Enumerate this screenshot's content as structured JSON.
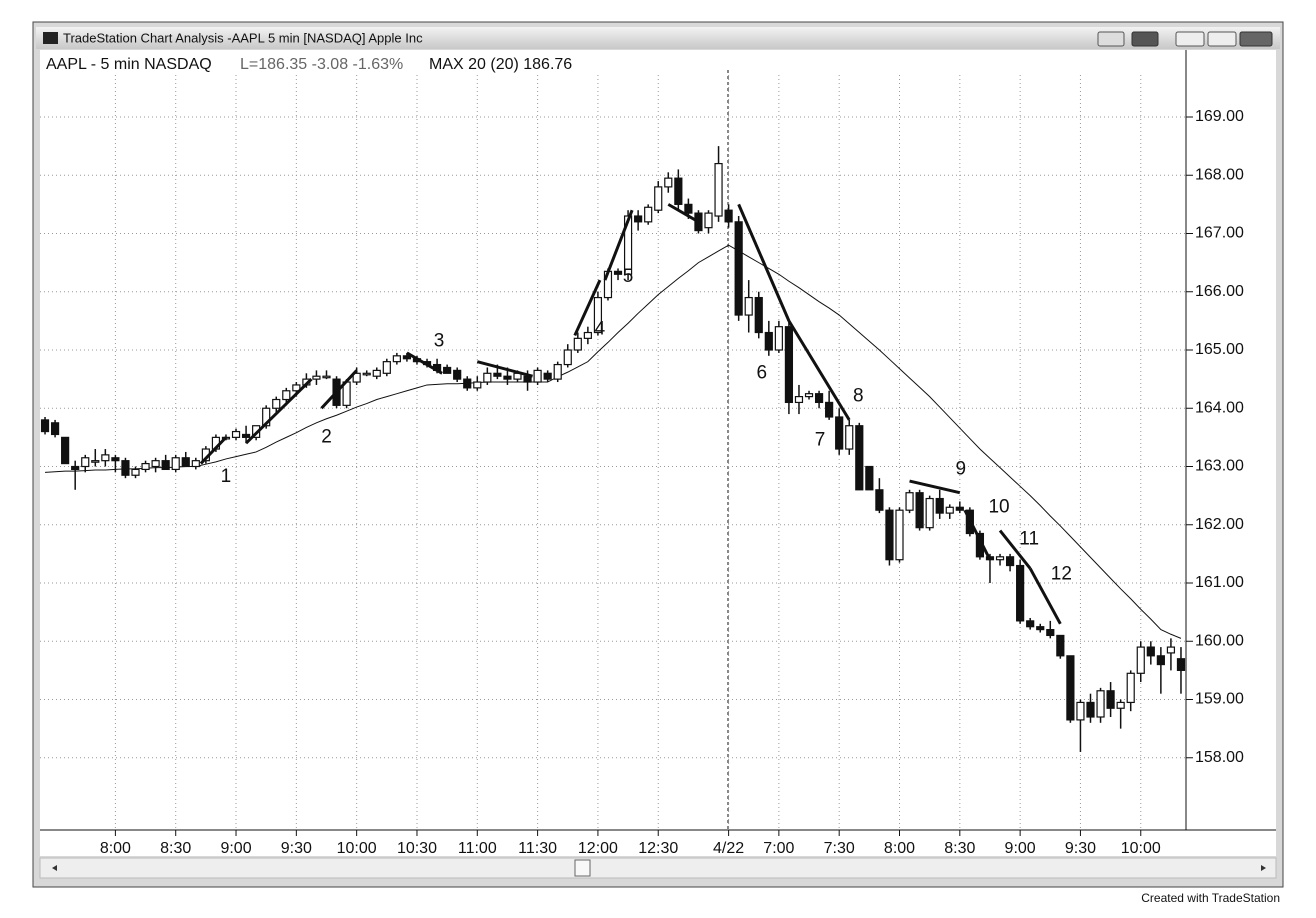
{
  "window_title": "TradeStation Chart Analysis -AAPL 5 min [NASDAQ] Apple Inc",
  "footer": "Created with TradeStation",
  "chart_data": {
    "type": "candlestick",
    "symbol_label": "AAPL - 5 min NASDAQ",
    "last_label": "L=186.35 -3.08 -1.63%",
    "indicator_label": "MAX 20 (20) 186.76",
    "categories": [
      null,
      null,
      null,
      null,
      null,
      null,
      null,
      "8:00",
      null,
      null,
      null,
      null,
      null,
      "8:30",
      null,
      null,
      null,
      null,
      null,
      "9:00",
      null,
      null,
      null,
      null,
      null,
      "9:30",
      null,
      null,
      null,
      null,
      null,
      "10:00",
      null,
      null,
      null,
      null,
      null,
      "10:30",
      null,
      null,
      null,
      null,
      null,
      "11:00",
      null,
      null,
      null,
      null,
      null,
      "11:30",
      null,
      null,
      null,
      null,
      null,
      "12:00",
      null,
      null,
      null,
      null,
      null,
      "12:30",
      null,
      null,
      null,
      null,
      null,
      null,
      "4/22",
      null,
      null,
      null,
      null,
      "7:00",
      null,
      null,
      null,
      null,
      null,
      "7:30",
      null,
      null,
      null,
      null,
      null,
      "8:00",
      null,
      null,
      null,
      null,
      null,
      "8:30",
      null,
      null,
      null,
      null,
      null,
      "9:00",
      null,
      null,
      null,
      null,
      null,
      "9:30",
      null,
      null,
      null,
      null,
      null,
      "10:00",
      null,
      null,
      null,
      null
    ],
    "open": [
      163.8,
      163.75,
      163.5,
      163.0,
      163.0,
      163.1,
      163.1,
      163.15,
      163.1,
      162.85,
      162.95,
      163.0,
      163.1,
      162.95,
      163.15,
      163.0,
      163.1,
      163.3,
      163.5,
      163.5,
      163.55,
      163.5,
      163.7,
      164.0,
      164.15,
      164.3,
      164.4,
      164.5,
      164.55,
      164.5,
      164.05,
      164.45,
      164.6,
      164.55,
      164.6,
      164.8,
      164.9,
      164.85,
      164.8,
      164.75,
      164.7,
      164.65,
      164.5,
      164.35,
      164.45,
      164.6,
      164.55,
      164.5,
      164.55,
      164.45,
      164.6,
      164.5,
      164.75,
      165.0,
      165.2,
      165.3,
      165.9,
      166.35,
      166.3,
      167.3,
      167.2,
      167.4,
      167.8,
      167.95,
      167.5,
      167.35,
      167.1,
      167.3,
      167.4,
      167.2,
      165.6,
      165.9,
      165.3,
      165.0,
      165.4,
      164.1,
      164.2,
      164.25,
      164.1,
      163.85,
      163.3,
      163.7,
      163.0,
      162.6,
      162.25,
      161.4,
      162.25,
      162.55,
      161.95,
      162.45,
      162.2,
      162.3,
      162.25,
      161.85,
      161.45,
      161.4,
      161.45,
      161.3,
      160.35,
      160.25,
      160.2,
      160.1,
      159.75,
      158.65,
      158.95,
      158.7,
      159.15,
      158.85,
      158.95,
      159.45,
      159.9,
      159.75,
      159.8,
      159.7
    ],
    "high": [
      163.85,
      163.8,
      163.5,
      163.1,
      163.2,
      163.3,
      163.3,
      163.2,
      163.15,
      163.0,
      163.1,
      163.15,
      163.2,
      163.2,
      163.25,
      163.15,
      163.35,
      163.55,
      163.55,
      163.65,
      163.7,
      163.7,
      164.05,
      164.2,
      164.35,
      164.45,
      164.6,
      164.65,
      164.65,
      164.55,
      164.5,
      164.7,
      164.65,
      164.7,
      164.85,
      164.95,
      164.95,
      164.9,
      164.85,
      164.85,
      164.75,
      164.7,
      164.55,
      164.55,
      164.7,
      164.75,
      164.7,
      164.65,
      164.65,
      164.7,
      164.65,
      164.8,
      165.1,
      165.3,
      165.4,
      166.0,
      166.4,
      166.4,
      167.4,
      167.4,
      167.5,
      167.9,
      168.05,
      168.1,
      167.6,
      167.4,
      167.4,
      168.5,
      167.5,
      167.3,
      166.2,
      166.0,
      165.5,
      165.5,
      165.5,
      164.4,
      164.3,
      164.3,
      164.3,
      164.0,
      163.8,
      163.75,
      163.0,
      162.8,
      162.3,
      162.3,
      162.6,
      162.6,
      162.5,
      162.6,
      162.35,
      162.4,
      162.3,
      161.9,
      161.5,
      161.5,
      161.5,
      161.4,
      160.4,
      160.3,
      160.35,
      160.1,
      159.75,
      159.0,
      159.1,
      159.2,
      159.3,
      159.0,
      159.5,
      160.0,
      160.0,
      159.9,
      160.05,
      159.9
    ],
    "low": [
      163.55,
      163.5,
      163.05,
      162.6,
      162.9,
      163.0,
      163.0,
      162.9,
      162.8,
      162.8,
      162.9,
      162.9,
      162.95,
      162.9,
      163.0,
      162.95,
      163.05,
      163.25,
      163.45,
      163.45,
      163.4,
      163.45,
      163.65,
      163.9,
      164.05,
      164.2,
      164.35,
      164.4,
      164.5,
      164.0,
      164.0,
      164.4,
      164.55,
      164.5,
      164.55,
      164.75,
      164.8,
      164.75,
      164.7,
      164.6,
      164.6,
      164.45,
      164.3,
      164.3,
      164.4,
      164.5,
      164.4,
      164.45,
      164.3,
      164.4,
      164.45,
      164.45,
      164.7,
      164.95,
      165.1,
      165.25,
      165.85,
      166.2,
      166.2,
      167.05,
      167.15,
      167.35,
      167.7,
      167.4,
      167.25,
      167.0,
      167.0,
      167.2,
      167.1,
      165.5,
      165.3,
      165.2,
      164.9,
      164.95,
      163.9,
      163.9,
      164.15,
      164.0,
      163.8,
      163.2,
      163.2,
      162.6,
      162.6,
      162.2,
      161.3,
      161.35,
      162.2,
      161.9,
      161.9,
      162.1,
      162.1,
      162.2,
      161.8,
      161.4,
      161.0,
      161.3,
      161.2,
      160.3,
      160.2,
      160.15,
      160.05,
      159.7,
      158.6,
      158.1,
      158.6,
      158.6,
      158.7,
      158.5,
      158.8,
      159.3,
      159.6,
      159.1,
      159.5,
      159.1
    ],
    "close": [
      163.6,
      163.55,
      163.05,
      162.95,
      163.15,
      163.1,
      163.2,
      163.1,
      162.85,
      162.95,
      163.05,
      163.1,
      162.95,
      163.15,
      163.0,
      163.1,
      163.3,
      163.5,
      163.5,
      163.6,
      163.5,
      163.7,
      164.0,
      164.15,
      164.3,
      164.4,
      164.5,
      164.55,
      164.55,
      164.05,
      164.45,
      164.6,
      164.6,
      164.65,
      164.8,
      164.9,
      164.85,
      164.8,
      164.75,
      164.65,
      164.6,
      164.5,
      164.35,
      164.45,
      164.6,
      164.55,
      164.5,
      164.6,
      164.45,
      164.65,
      164.5,
      164.75,
      165.0,
      165.2,
      165.3,
      165.9,
      166.35,
      166.3,
      167.3,
      167.2,
      167.45,
      167.8,
      167.95,
      167.5,
      167.35,
      167.05,
      167.35,
      168.2,
      167.2,
      165.6,
      165.9,
      165.3,
      165.0,
      165.4,
      164.1,
      164.2,
      164.25,
      164.1,
      163.85,
      163.3,
      163.7,
      162.6,
      162.6,
      162.25,
      161.4,
      162.25,
      162.55,
      161.95,
      162.45,
      162.2,
      162.3,
      162.25,
      161.85,
      161.45,
      161.4,
      161.45,
      161.3,
      160.35,
      160.25,
      160.2,
      160.1,
      159.75,
      158.65,
      158.95,
      158.7,
      159.15,
      158.85,
      158.95,
      159.45,
      159.9,
      159.75,
      159.6,
      159.9,
      159.5
    ],
    "average": [
      162.9,
      162.91,
      162.92,
      162.92,
      162.93,
      162.94,
      162.94,
      162.95,
      162.96,
      162.96,
      162.97,
      162.98,
      162.98,
      162.99,
      163.0,
      163.0,
      163.04,
      163.08,
      163.13,
      163.17,
      163.21,
      163.25,
      163.33,
      163.42,
      163.5,
      163.58,
      163.67,
      163.75,
      163.82,
      163.88,
      163.95,
      164.02,
      164.08,
      164.15,
      164.2,
      164.25,
      164.3,
      164.35,
      164.4,
      164.41,
      164.42,
      164.42,
      164.43,
      164.44,
      164.45,
      164.45,
      164.45,
      164.45,
      164.45,
      164.45,
      164.45,
      164.54,
      164.62,
      164.71,
      164.8,
      164.97,
      165.13,
      165.3,
      165.46,
      165.63,
      165.79,
      165.95,
      166.09,
      166.23,
      166.36,
      166.5,
      166.6,
      166.7,
      166.8,
      166.7,
      166.6,
      166.5,
      166.4,
      166.3,
      166.18,
      166.07,
      165.95,
      165.83,
      165.72,
      165.6,
      165.45,
      165.3,
      165.15,
      165.0,
      164.84,
      164.68,
      164.52,
      164.36,
      164.2,
      164.02,
      163.84,
      163.66,
      163.48,
      163.3,
      163.14,
      162.98,
      162.82,
      162.66,
      162.5,
      162.33,
      162.15,
      161.98,
      161.8,
      161.62,
      161.44,
      161.26,
      161.08,
      160.9,
      160.73,
      160.55,
      160.38,
      160.2,
      160.12,
      160.05
    ],
    "trendlines": [
      {
        "x": [
          15.5,
          18
        ],
        "y": [
          163.05,
          163.5
        ]
      },
      {
        "x": [
          20,
          26.5
        ],
        "y": [
          163.4,
          164.5
        ]
      },
      {
        "x": [
          27.5,
          31
        ],
        "y": [
          164.0,
          164.65
        ]
      },
      {
        "x": [
          36,
          39.5
        ],
        "y": [
          164.95,
          164.6
        ]
      },
      {
        "x": [
          43,
          48.5
        ],
        "y": [
          164.8,
          164.55
        ]
      },
      {
        "x": [
          52.7,
          55.2
        ],
        "y": [
          165.25,
          166.2
        ]
      },
      {
        "x": [
          55.7,
          58.4
        ],
        "y": [
          166.2,
          167.4
        ]
      },
      {
        "x": [
          62,
          65
        ],
        "y": [
          167.5,
          167.2
        ]
      },
      {
        "x": [
          69,
          74
        ],
        "y": [
          167.5,
          165.5
        ]
      },
      {
        "x": [
          74,
          80
        ],
        "y": [
          165.5,
          163.8
        ]
      },
      {
        "x": [
          86,
          91
        ],
        "y": [
          162.75,
          162.55
        ]
      },
      {
        "x": [
          91.5,
          94
        ],
        "y": [
          162.25,
          161.4
        ]
      },
      {
        "x": [
          95,
          98
        ],
        "y": [
          161.9,
          161.25
        ]
      },
      {
        "x": [
          98,
          101
        ],
        "y": [
          161.25,
          160.3
        ]
      }
    ],
    "annotations": [
      {
        "text": "1",
        "x": 18,
        "y": 162.82
      },
      {
        "text": "2",
        "x": 28,
        "y": 163.5
      },
      {
        "text": "3",
        "x": 39.2,
        "y": 165.15
      },
      {
        "text": "4",
        "x": 55.2,
        "y": 165.35
      },
      {
        "text": "5",
        "x": 58,
        "y": 166.25
      },
      {
        "text": "6",
        "x": 71.3,
        "y": 164.6
      },
      {
        "text": "7",
        "x": 77.1,
        "y": 163.45
      },
      {
        "text": "8",
        "x": 80.9,
        "y": 164.2
      },
      {
        "text": "9",
        "x": 91.1,
        "y": 162.95
      },
      {
        "text": "10",
        "x": 94.9,
        "y": 162.3
      },
      {
        "text": "11",
        "x": 97.9,
        "y": 161.75
      },
      {
        "text": "12",
        "x": 101.1,
        "y": 161.15
      }
    ],
    "ylim": [
      156.76,
      170.15
    ],
    "yticks": [
      {
        "value": 158,
        "label": "158.00"
      },
      {
        "value": 159,
        "label": "159.00"
      },
      {
        "value": 160,
        "label": "160.00"
      },
      {
        "value": 161,
        "label": "161.00"
      },
      {
        "value": 162,
        "label": "162.00"
      },
      {
        "value": 163,
        "label": "163.00"
      },
      {
        "value": 164,
        "label": "164.00"
      },
      {
        "value": 165,
        "label": "165.00"
      },
      {
        "value": 166,
        "label": "166.00"
      },
      {
        "value": 167,
        "label": "167.00"
      },
      {
        "value": 168,
        "label": "168.00"
      },
      {
        "value": 169,
        "label": "169.00"
      }
    ],
    "grid": true,
    "up_color": "#ffffff",
    "down_color": "#111111",
    "line_color": "#111111"
  }
}
